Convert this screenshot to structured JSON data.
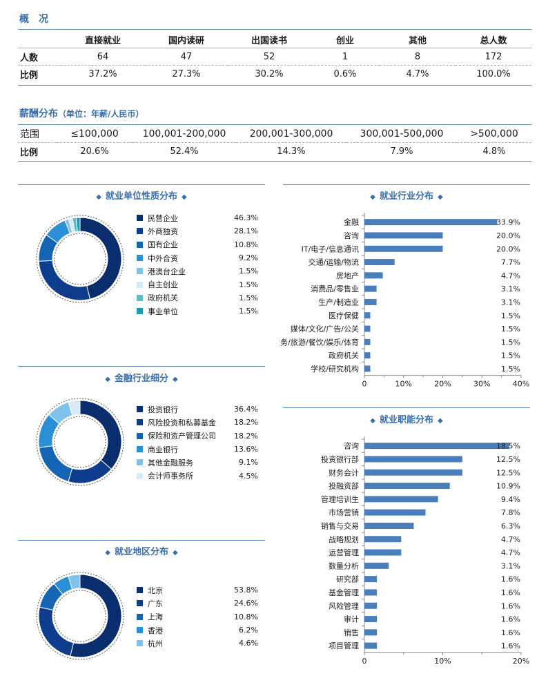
{
  "overview": {
    "title": "概　况",
    "columns": [
      "",
      "直接就业",
      "国内读研",
      "出国读书",
      "创业",
      "其他",
      "总人数"
    ],
    "rows": [
      {
        "label": "人数",
        "values": [
          "64",
          "47",
          "52",
          "1",
          "8",
          "172"
        ]
      },
      {
        "label": "比例",
        "values": [
          "37.2%",
          "27.3%",
          "30.2%",
          "0.6%",
          "4.7%",
          "100.0%"
        ]
      }
    ]
  },
  "salary": {
    "title": "薪酬分布",
    "subtitle": "（单位：年薪/人民币）",
    "rows": [
      {
        "label": "范围",
        "values": [
          "≤100,000",
          "100,001-200,000",
          "200,001-300,000",
          "300,001-500,000",
          ">500,000"
        ]
      },
      {
        "label": "比例",
        "values": [
          "20.6%",
          "52.4%",
          "14.3%",
          "7.9%",
          "4.8%"
        ]
      }
    ]
  },
  "chart_data": [
    {
      "type": "pie",
      "title": "就业单位性质分布",
      "categories": [
        "民营企业",
        "外商独资",
        "国有企业",
        "中外合资",
        "港澳台企业",
        "自主创业",
        "政府机关",
        "事业单位"
      ],
      "values": [
        46.3,
        28.1,
        10.8,
        9.2,
        1.5,
        1.5,
        1.5,
        1.5
      ],
      "labels": [
        "46.3%",
        "28.1%",
        "10.8%",
        "9.2%",
        "1.5%",
        "1.5%",
        "1.5%",
        "1.5%"
      ],
      "colors": [
        "#0a2d6e",
        "#0e3d8e",
        "#1565b5",
        "#2a8fd6",
        "#7fc3ea",
        "#d5e9f6",
        "#5bbfc9",
        "#1a9aaa"
      ],
      "legend": "right"
    },
    {
      "type": "pie",
      "title": "金融行业细分",
      "categories": [
        "投资银行",
        "风险投资和私募基金",
        "保险和资产管理公司",
        "商业银行",
        "其他金融服务",
        "会计师事务所"
      ],
      "values": [
        36.4,
        18.2,
        18.2,
        13.6,
        9.1,
        4.5
      ],
      "labels": [
        "36.4%",
        "18.2%",
        "18.2%",
        "13.6%",
        "9.1%",
        "4.5%"
      ],
      "colors": [
        "#0a2d6e",
        "#0e3d8e",
        "#1565b5",
        "#2a8fd6",
        "#7fc3ea",
        "#d5e9f6"
      ],
      "legend": "right"
    },
    {
      "type": "pie",
      "title": "就业地区分布",
      "categories": [
        "北京",
        "广东",
        "上海",
        "香港",
        "杭州"
      ],
      "values": [
        53.8,
        24.6,
        10.8,
        6.2,
        4.6
      ],
      "labels": [
        "53.8%",
        "24.6%",
        "10.8%",
        "6.2%",
        "4.6%"
      ],
      "colors": [
        "#0a2d6e",
        "#0e3d8e",
        "#1565b5",
        "#2a8fd6",
        "#7fc3ea"
      ],
      "legend": "right"
    },
    {
      "type": "bar",
      "orientation": "horizontal",
      "title": "就业行业分布",
      "categories": [
        "金融",
        "咨询",
        "IT/电子/信息通讯",
        "交通/运输/物流",
        "房地产",
        "消费品/零售业",
        "生产/制造业",
        "医疗保健",
        "媒体/文化/广告/公关",
        "服务/旅游/餐饮/娱乐/体育",
        "政府机关",
        "学校/研究机构"
      ],
      "values": [
        33.9,
        20.0,
        20.0,
        7.7,
        4.7,
        3.1,
        3.1,
        1.5,
        1.5,
        1.5,
        1.5,
        1.5
      ],
      "labels": [
        "33.9%",
        "20.0%",
        "20.0%",
        "7.7%",
        "4.7%",
        "3.1%",
        "3.1%",
        "1.5%",
        "1.5%",
        "1.5%",
        "1.5%",
        "1.5%"
      ],
      "xticks": [
        "0",
        "10%",
        "20%",
        "30%",
        "40%"
      ],
      "xlim": [
        0,
        40
      ],
      "bar_color": "#4a7ebb"
    },
    {
      "type": "bar",
      "orientation": "horizontal",
      "title": "就业职能分布",
      "categories": [
        "咨询",
        "投资银行部",
        "财务会计",
        "投融资部",
        "管理培训生",
        "市场营销",
        "销售与交易",
        "战略规划",
        "运营管理",
        "数量分析",
        "研究部",
        "基金管理",
        "风险管理",
        "审计",
        "销售",
        "项目管理"
      ],
      "values": [
        18.5,
        12.5,
        12.5,
        10.9,
        9.4,
        7.8,
        6.3,
        4.7,
        4.7,
        3.1,
        1.6,
        1.6,
        1.6,
        1.6,
        1.6,
        1.6
      ],
      "labels": [
        "18.5%",
        "12.5%",
        "12.5%",
        "10.9%",
        "9.4%",
        "7.8%",
        "6.3%",
        "4.7%",
        "4.7%",
        "3.1%",
        "1.6%",
        "1.6%",
        "1.6%",
        "1.6%",
        "1.6%",
        "1.6%"
      ],
      "xticks": [
        "0",
        "10%",
        "20%"
      ],
      "xlim": [
        0,
        20
      ],
      "bar_color": "#4a7ebb"
    }
  ]
}
